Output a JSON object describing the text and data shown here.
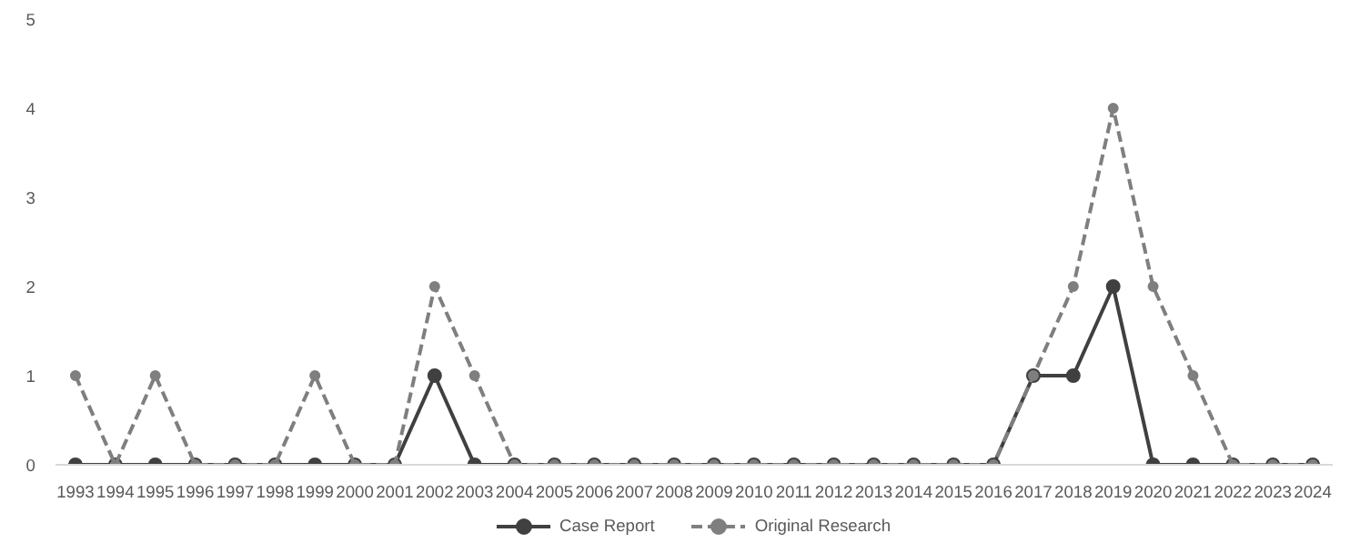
{
  "chart_data": {
    "type": "line",
    "categories": [
      "1993",
      "1994",
      "1995",
      "1996",
      "1997",
      "1998",
      "1999",
      "2000",
      "2001",
      "2002",
      "2003",
      "2004",
      "2005",
      "2006",
      "2007",
      "2008",
      "2009",
      "2010",
      "2011",
      "2012",
      "2013",
      "2014",
      "2015",
      "2016",
      "2017",
      "2018",
      "2019",
      "2020",
      "2021",
      "2022",
      "2023",
      "2024"
    ],
    "series": [
      {
        "name": "Case Report",
        "color": "#404040",
        "line_style": "solid",
        "values": [
          0,
          0,
          0,
          0,
          0,
          0,
          0,
          0,
          0,
          1,
          0,
          0,
          0,
          0,
          0,
          0,
          0,
          0,
          0,
          0,
          0,
          0,
          0,
          0,
          1,
          1,
          2,
          0,
          0,
          0,
          0,
          0
        ]
      },
      {
        "name": "Original Research",
        "color": "#7f7f7f",
        "line_style": "dashed",
        "values": [
          1,
          0,
          1,
          0,
          0,
          0,
          1,
          0,
          0,
          2,
          1,
          0,
          0,
          0,
          0,
          0,
          0,
          0,
          0,
          0,
          0,
          0,
          0,
          0,
          1,
          2,
          4,
          2,
          1,
          0,
          0,
          0
        ]
      }
    ],
    "ylim": [
      0,
      5
    ],
    "yticks": [
      0,
      1,
      2,
      3,
      4,
      5
    ],
    "grid": false,
    "legend": "bottom",
    "marker": "circle"
  }
}
